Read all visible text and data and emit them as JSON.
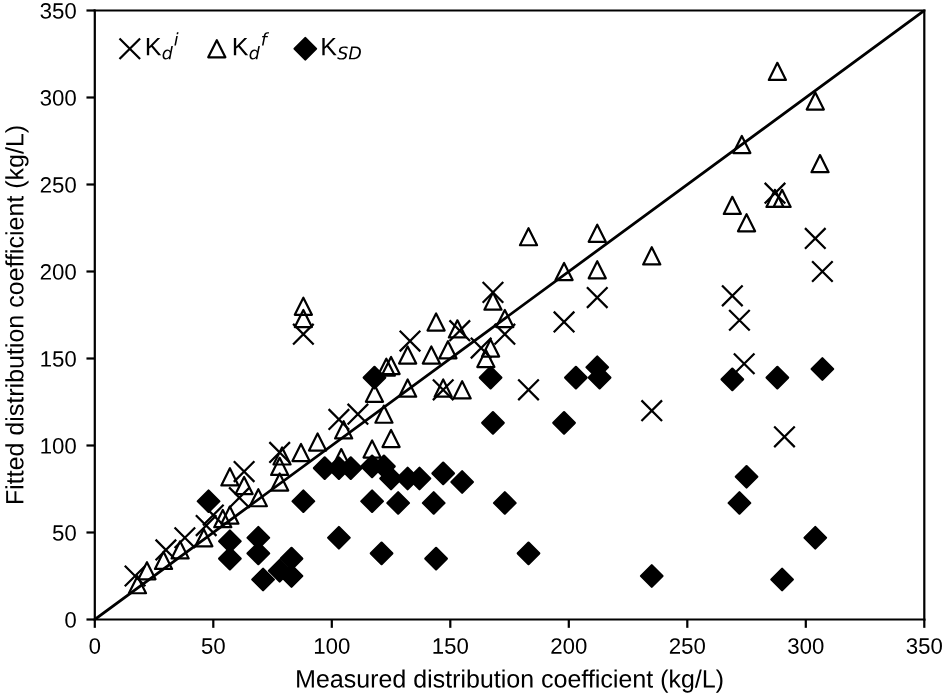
{
  "chart_data": {
    "type": "scatter",
    "xlabel": "Measured distribution coefficient (kg/L)",
    "ylabel": "Fitted distribution coefficient (kg/L)",
    "xlim": [
      0,
      350
    ],
    "ylim": [
      0,
      350
    ],
    "xticks": [
      0,
      50,
      100,
      150,
      200,
      250,
      300,
      350
    ],
    "yticks": [
      0,
      50,
      100,
      150,
      200,
      250,
      300,
      350
    ],
    "grid": false,
    "legend": "top left",
    "series": [
      {
        "name": "K$_{d}$$^{i}$",
        "marker": "cross",
        "color": "#000000",
        "x": [
          287,
          304,
          307,
          269,
          272,
          274,
          291,
          235,
          168,
          198,
          212,
          183,
          173,
          154,
          133,
          147,
          163,
          88,
          111,
          103,
          78,
          63,
          47,
          38,
          30,
          17,
          50,
          61
        ],
        "values": [
          245,
          219,
          200,
          186,
          172,
          147,
          105,
          120,
          188,
          171,
          185,
          132,
          164,
          166,
          160,
          132,
          156,
          164,
          118,
          115,
          96,
          85,
          54,
          47,
          40,
          25,
          60,
          70
        ]
      },
      {
        "name": "K$_{d}$$^{f}$",
        "marker": "triangle",
        "color": "#000000",
        "x": [
          288,
          304,
          273,
          306,
          287,
          290,
          269,
          275,
          235,
          183,
          212,
          198,
          212,
          144,
          153,
          173,
          168,
          125,
          132,
          142,
          149,
          165,
          167,
          155,
          147,
          132,
          125,
          88,
          88,
          123,
          118,
          122,
          117,
          105,
          104,
          94,
          87,
          78,
          79,
          57,
          63,
          69,
          54,
          46,
          36,
          29,
          22,
          18,
          57,
          78
        ],
        "values": [
          315,
          298,
          273,
          262,
          242,
          242,
          238,
          228,
          209,
          220,
          222,
          200,
          201,
          171,
          167,
          173,
          183,
          146,
          152,
          152,
          155,
          150,
          156,
          132,
          133,
          133,
          104,
          180,
          173,
          145,
          130,
          118,
          98,
          109,
          93,
          102,
          96,
          88,
          94,
          82,
          77,
          70,
          58,
          47,
          40,
          34,
          28,
          20,
          60,
          79
        ]
      },
      {
        "name": "K$_{SD}$",
        "marker": "diamond",
        "color": "#000000",
        "x": [
          307,
          288,
          269,
          275,
          272,
          304,
          235,
          290,
          167,
          203,
          212,
          213,
          168,
          198,
          147,
          155,
          122,
          125,
          132,
          137,
          128,
          143,
          173,
          121,
          144,
          183,
          118,
          117,
          97,
          103,
          108,
          88,
          117,
          48,
          57,
          69,
          103,
          57,
          69,
          71,
          78,
          83,
          83
        ],
        "values": [
          144,
          139,
          138,
          82,
          67,
          47,
          25,
          23,
          139,
          139,
          145,
          139,
          113,
          113,
          84,
          79,
          88,
          81,
          81,
          81,
          67,
          67,
          67,
          38,
          35,
          38,
          139,
          88,
          87,
          87,
          87,
          68,
          68,
          68,
          45,
          47,
          47,
          35,
          38,
          23,
          28,
          35,
          25
        ]
      },
      {
        "type": "line",
        "marker": "none",
        "line_style": "solid",
        "color": "#000000",
        "x": [
          0,
          350
        ],
        "values": [
          0,
          350
        ]
      }
    ]
  }
}
